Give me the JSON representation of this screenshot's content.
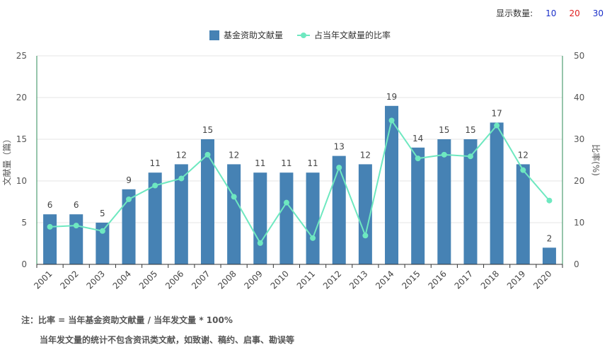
{
  "controls": {
    "label": "显示数量:",
    "options": [
      {
        "label": "10",
        "color": "#1a2fc9"
      },
      {
        "label": "20",
        "color": "#e02020"
      },
      {
        "label": "30",
        "color": "#1a2fc9"
      }
    ]
  },
  "notes": {
    "line1": "注：比率 = 当年基金资助文献量 / 当年发文量 * 100%",
    "line2": "当年发文量的统计不包含资讯类文献，如致谢、稿约、启事、勘误等"
  },
  "colors": {
    "bar": "#4682b4",
    "line": "#6ee8c0",
    "axis_right": "#2e8b57"
  },
  "chart_data": {
    "type": "bar",
    "categories": [
      "2001",
      "2002",
      "2003",
      "2004",
      "2005",
      "2006",
      "2007",
      "2008",
      "2009",
      "2010",
      "2011",
      "2012",
      "2013",
      "2014",
      "2015",
      "2016",
      "2017",
      "2018",
      "2019",
      "2020"
    ],
    "series": [
      {
        "name": "基金资助文献量",
        "type": "bar",
        "axis": "left",
        "values": [
          6,
          6,
          5,
          9,
          11,
          12,
          15,
          12,
          11,
          11,
          11,
          13,
          12,
          19,
          14,
          15,
          15,
          17,
          12,
          2
        ]
      },
      {
        "name": "占当年文献量的比率",
        "type": "line",
        "axis": "right",
        "values": [
          9.0,
          9.3,
          8.0,
          15.6,
          18.9,
          20.6,
          26.3,
          16.2,
          5.1,
          14.8,
          6.3,
          23.2,
          6.9,
          34.5,
          25.4,
          26.3,
          25.9,
          33.3,
          22.6,
          15.3
        ]
      }
    ],
    "ylabel": "文献量（篇）",
    "y2label": "比率(%)",
    "ylim": [
      0,
      25
    ],
    "y2lim": [
      0,
      50
    ],
    "yticks": [
      0,
      5,
      10,
      15,
      20,
      25
    ],
    "y2ticks": [
      0,
      10,
      20,
      30,
      40,
      50
    ],
    "grid": true,
    "legend": "top-center"
  }
}
